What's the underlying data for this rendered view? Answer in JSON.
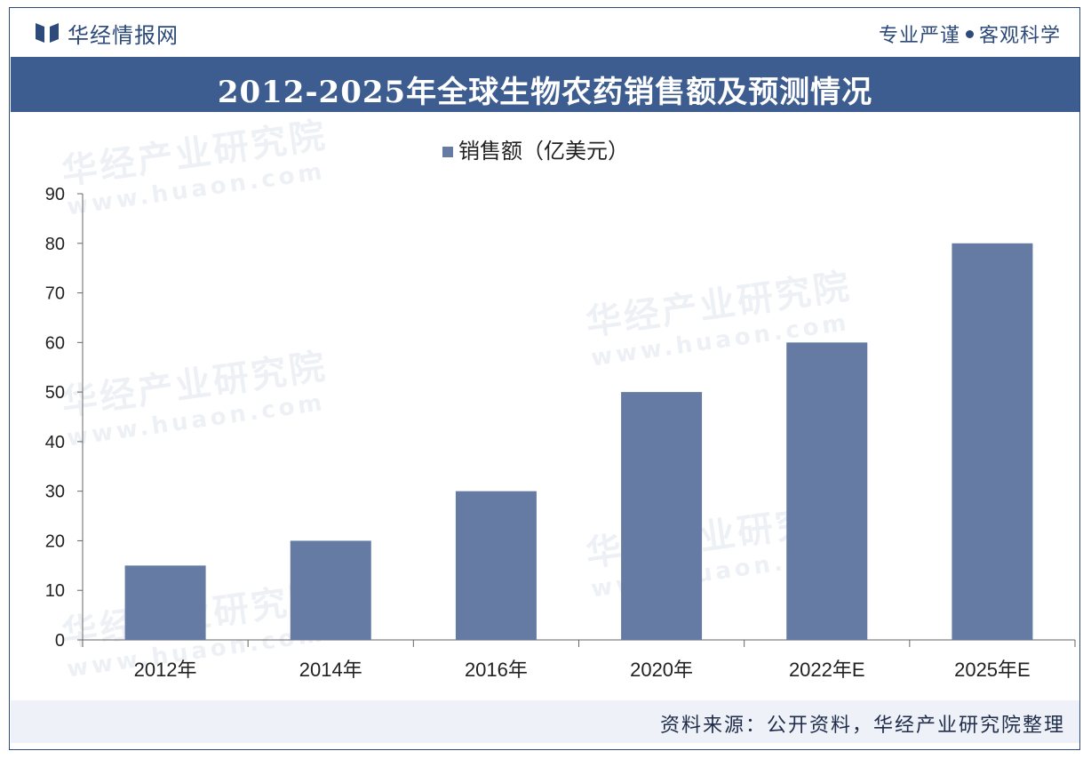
{
  "header": {
    "brand": "华经情报网",
    "slogan_left": "专业严谨",
    "slogan_right": "客观科学",
    "brand_icon": "huajing-logo-icon"
  },
  "title": "2012-2025年全球生物农药销售额及预测情况",
  "watermark": {
    "text": "华经产业研究院",
    "url": "www.huaon.com"
  },
  "colors": {
    "bar": "#657ba3",
    "title_band": "#3d5c8f",
    "brand": "#2d4a7a"
  },
  "chart_data": {
    "type": "bar",
    "categories": [
      "2012年",
      "2014年",
      "2016年",
      "2020年",
      "2022年E",
      "2025年E"
    ],
    "series": [
      {
        "name": "销售额（亿美元）",
        "values": [
          15,
          20,
          30,
          50,
          60,
          80
        ]
      }
    ],
    "ylim": [
      0,
      90
    ],
    "yticks": [
      "0",
      "10",
      "20",
      "30",
      "40",
      "50",
      "60",
      "70",
      "80",
      "90"
    ],
    "legend_position": "top-center",
    "grid": false
  },
  "footer": {
    "source": "资料来源：公开资料，华经产业研究院整理"
  }
}
